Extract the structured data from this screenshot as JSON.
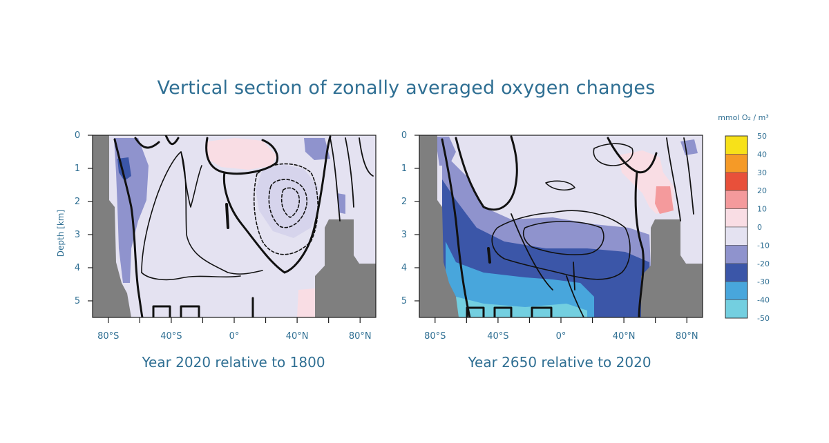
{
  "title": "Vertical section of zonally averaged oxygen changes",
  "colors": {
    "land": "#7f7f7f",
    "text": "#2f6f93",
    "levels": {
      "-50..-40": "#73cfe0",
      "-40..-30": "#48a6dc",
      "-30..-20": "#3b56a8",
      "-20..-10": "#8f93cd",
      "-10..0": "#e4e2f1",
      "0..10": "#f9dde4",
      "10..20": "#f49a9c",
      "20..30": "#e8503a",
      "30..40": "#f59a27",
      "40..50": "#f7e119"
    }
  },
  "colorbar": {
    "unit_label": "mmol O₂ / m³",
    "ticks": [
      50,
      40,
      30,
      20,
      10,
      0,
      -10,
      -20,
      -30,
      -40,
      -50
    ]
  },
  "chart_data": [
    {
      "type": "heatmap",
      "caption": "Year 2020 relative to 1800",
      "ylabel": "Depth [km]",
      "xlim": [
        -90,
        90
      ],
      "ylim": [
        0,
        5.5
      ],
      "x_tick_labels": [
        "80°S",
        "40°S",
        "0°",
        "40°N",
        "80°N"
      ],
      "x_tick_values": [
        -80,
        -40,
        0,
        40,
        80
      ],
      "y_tick_values": [
        0,
        1,
        2,
        3,
        4,
        5
      ],
      "dominant_range": "-10..0",
      "regions": [
        {
          "range": "-20..-10",
          "description_lat": [
            -70,
            -58
          ],
          "depth_km": [
            0.5,
            4.2
          ]
        },
        {
          "range": "0..10",
          "description_lat": [
            18,
            32
          ],
          "depth_km": [
            0.2,
            0.9
          ]
        },
        {
          "range": "-20..-10",
          "description_lat": [
            26,
            40
          ],
          "depth_km": [
            1.1,
            2.9
          ]
        },
        {
          "range": "-20..-10",
          "description_lat": [
            46,
            58
          ],
          "depth_km": [
            0.1,
            0.7
          ]
        }
      ]
    },
    {
      "type": "heatmap",
      "caption": "Year 2650 relative to 2020",
      "ylabel": "",
      "xlim": [
        -90,
        90
      ],
      "ylim": [
        0,
        5.5
      ],
      "x_tick_labels": [
        "80°S",
        "40°S",
        "0°",
        "40°N",
        "80°N"
      ],
      "x_tick_values": [
        -80,
        -40,
        0,
        40,
        80
      ],
      "y_tick_values": [
        0,
        1,
        2,
        3,
        4,
        5
      ],
      "dominant_range": "-10..0",
      "regions": [
        {
          "range": "-20..-10",
          "description_lat": [
            -75,
            48
          ],
          "depth_km": [
            2.3,
            4.8
          ]
        },
        {
          "range": "-30..-20",
          "description_lat": [
            -75,
            45
          ],
          "depth_km": [
            3.0,
            5.5
          ]
        },
        {
          "range": "-40..-30",
          "description_lat": [
            -72,
            10
          ],
          "depth_km": [
            3.6,
            5.5
          ]
        },
        {
          "range": "10..20",
          "description_lat": [
            58,
            66
          ],
          "depth_km": [
            1.7,
            2.6
          ]
        },
        {
          "range": "0..10",
          "description_lat": [
            36,
            68
          ],
          "depth_km": [
            0.4,
            3.0
          ]
        }
      ]
    }
  ]
}
